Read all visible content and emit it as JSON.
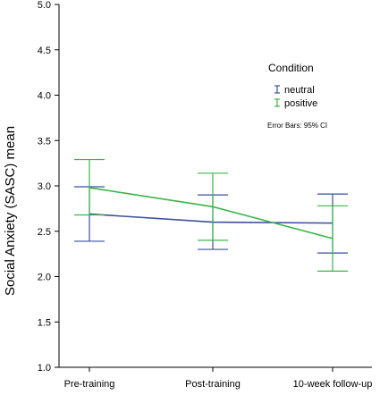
{
  "chart_data": {
    "type": "line",
    "title": "",
    "xlabel": "",
    "ylabel": "Social Anxiety (SASC) mean",
    "ylim": [
      1.0,
      5.0
    ],
    "yticks": [
      "1.0",
      "1.5",
      "2.0",
      "2.5",
      "3.0",
      "3.5",
      "4.0",
      "4.5",
      "5.0"
    ],
    "categories": [
      "Pre-training",
      "Post-training",
      "10-week follow-up"
    ],
    "legend": {
      "title": "Condition",
      "note": "Error Bars: 95% CI",
      "placement": "top-right"
    },
    "series": [
      {
        "name": "neutral",
        "color": "#3a4fa0",
        "values": [
          2.69,
          2.6,
          2.59
        ],
        "ci_low": [
          2.39,
          2.3,
          2.26
        ],
        "ci_high": [
          2.99,
          2.9,
          2.91
        ]
      },
      {
        "name": "positive",
        "color": "#3cb44a",
        "values": [
          2.98,
          2.77,
          2.42
        ],
        "ci_low": [
          2.68,
          2.4,
          2.06
        ],
        "ci_high": [
          3.29,
          3.14,
          2.78
        ]
      }
    ]
  }
}
